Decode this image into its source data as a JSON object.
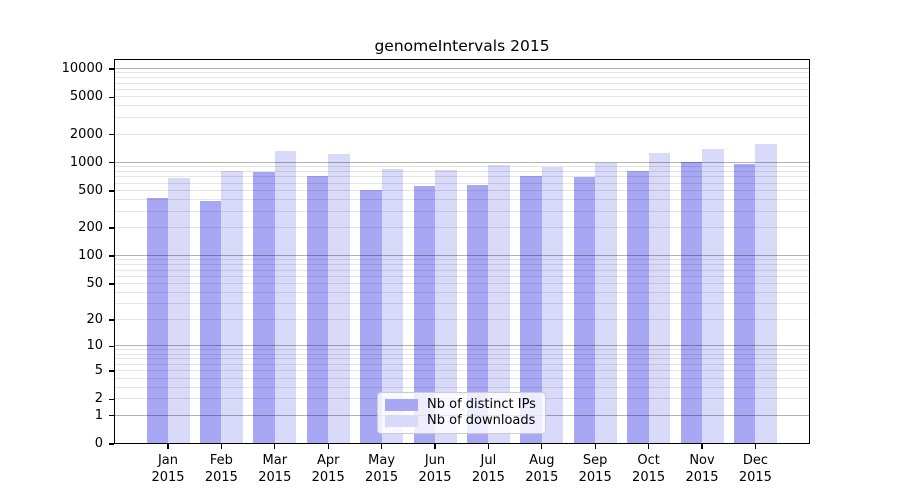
{
  "chart_data": {
    "type": "bar",
    "title": "genomeIntervals 2015",
    "categories": [
      "Jan",
      "Feb",
      "Mar",
      "Apr",
      "May",
      "Jun",
      "Jul",
      "Aug",
      "Sep",
      "Oct",
      "Nov",
      "Dec"
    ],
    "category_year": "2015",
    "series": [
      {
        "name": "Nb of distinct IPs",
        "color": "#a7a7f4",
        "values": [
          420,
          390,
          800,
          720,
          510,
          560,
          575,
          720,
          705,
          825,
          1010,
          970
        ]
      },
      {
        "name": "Nb of downloads",
        "color": "#d9d9f9",
        "values": [
          680,
          810,
          1350,
          1230,
          850,
          830,
          950,
          910,
          1005,
          1265,
          1420,
          1600
        ]
      }
    ],
    "yscale": "log10(value+1)",
    "yticks": [
      0,
      1,
      2,
      5,
      10,
      20,
      50,
      100,
      200,
      500,
      1000,
      2000,
      5000,
      10000
    ],
    "ylim": [
      0,
      12800
    ],
    "xlabel": "",
    "ylabel": "",
    "grid": "horizontal major decades + log minor lines, drawn over bars",
    "legend_position": "inside-bottom-center"
  }
}
